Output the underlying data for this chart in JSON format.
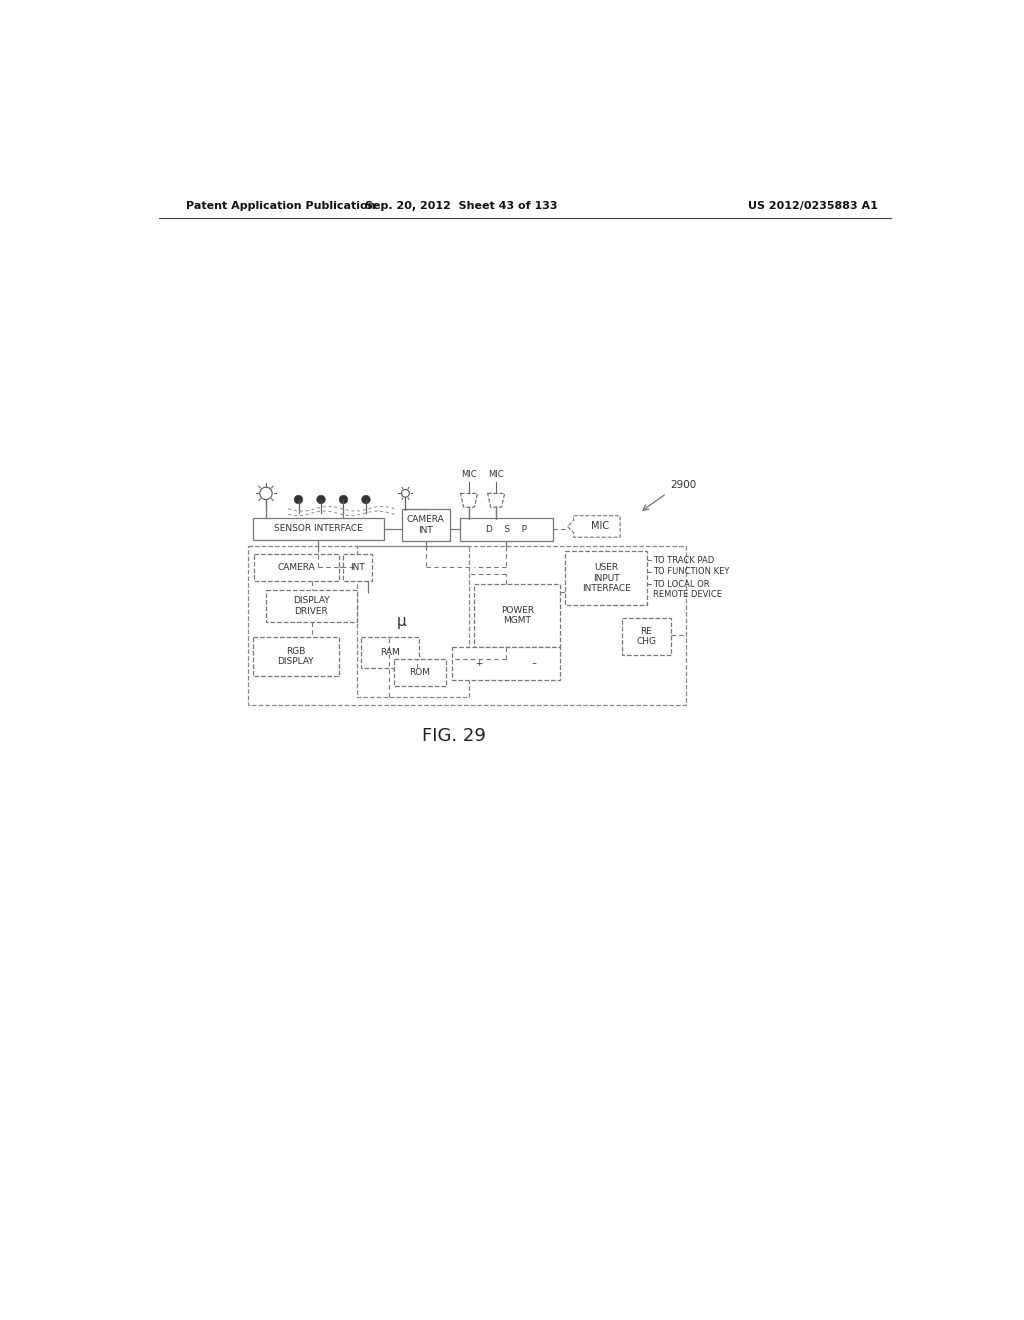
{
  "title_left": "Patent Application Publication",
  "title_mid": "Sep. 20, 2012  Sheet 43 of 133",
  "title_right": "US 2012/0235883 A1",
  "fig_label": "FIG. 29",
  "diagram_ref": "2900",
  "background_color": "#ffffff",
  "line_color": "#777777",
  "box_fill": "#ffffff",
  "text_color": "#333333"
}
